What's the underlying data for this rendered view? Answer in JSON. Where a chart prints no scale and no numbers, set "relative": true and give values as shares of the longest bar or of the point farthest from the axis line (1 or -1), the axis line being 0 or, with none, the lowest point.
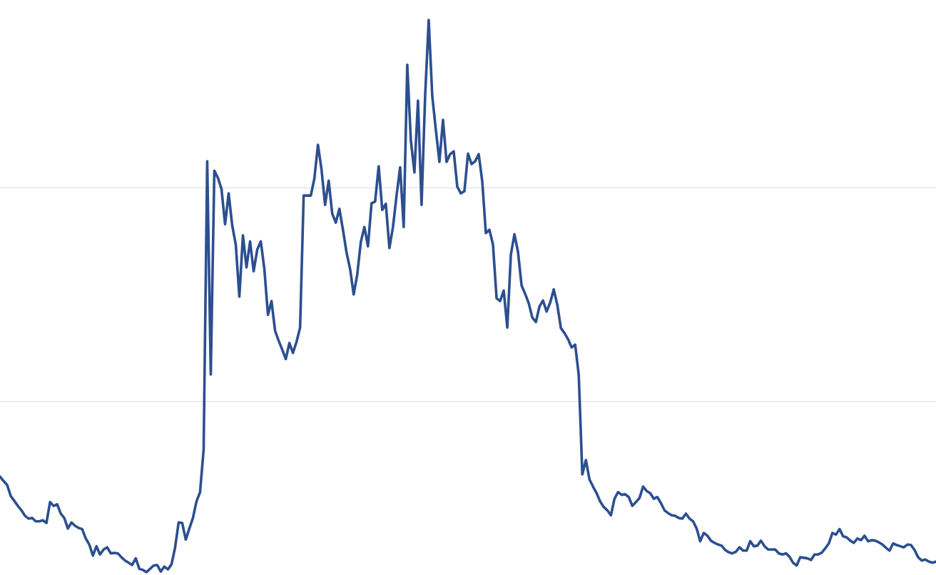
{
  "chart_data": {
    "type": "line",
    "relative": true,
    "color": "#2c4f8f",
    "ref_lines": [
      {
        "axis": "y",
        "value": 0.309,
        "color": "#e6e6e6"
      },
      {
        "axis": "y",
        "value": 0.696,
        "color": "#e6e6e6"
      }
    ],
    "categories": [
      null,
      null,
      null,
      null,
      null,
      null,
      null,
      null,
      null,
      null,
      null,
      null,
      null,
      null,
      null,
      null,
      null,
      null,
      null,
      null,
      null,
      null,
      null,
      null,
      null,
      null,
      null,
      null,
      null,
      null,
      null,
      null,
      null,
      null,
      null,
      null,
      null,
      null,
      null,
      null,
      null,
      null,
      null,
      null,
      null,
      null,
      null,
      null,
      null,
      null,
      null,
      null,
      null,
      null,
      null,
      null,
      null,
      null,
      null,
      null,
      null,
      null,
      null,
      null,
      null,
      null,
      null,
      null,
      null,
      null,
      null,
      null,
      null,
      null,
      null,
      null,
      null,
      null,
      null,
      null,
      null,
      null,
      null,
      null,
      null,
      null,
      null,
      null,
      null,
      null,
      null,
      null,
      null,
      null,
      null,
      null,
      null,
      null,
      null,
      null,
      null,
      null,
      null,
      null,
      null,
      null,
      null,
      null,
      null,
      null,
      null,
      null,
      null,
      null,
      null,
      null,
      null,
      null,
      null,
      null,
      null,
      null,
      null,
      null,
      null,
      null,
      null,
      null,
      null,
      null,
      null,
      null,
      null,
      null,
      null,
      null,
      null,
      null,
      null,
      null,
      null,
      null,
      null,
      null,
      null,
      null,
      null,
      null,
      null,
      null,
      null,
      null,
      null,
      null,
      null,
      null,
      null,
      null,
      null,
      null,
      null,
      null,
      null,
      null,
      null,
      null,
      null,
      null,
      null,
      null,
      null,
      null,
      null,
      null,
      null,
      null,
      null,
      null,
      null,
      null,
      null,
      null,
      null,
      null,
      null,
      null,
      null,
      null,
      null,
      null,
      null,
      null,
      null,
      null,
      null,
      null,
      null,
      null,
      null,
      null,
      null,
      null,
      null,
      null,
      null,
      null,
      null,
      null,
      null,
      null,
      null,
      null,
      null,
      null,
      null,
      null,
      null,
      null,
      null,
      null,
      null,
      null,
      null,
      null,
      null,
      null,
      null,
      null,
      null,
      null,
      null,
      null,
      null,
      null,
      null,
      null,
      null,
      null,
      null,
      null,
      null,
      null,
      null,
      null,
      null,
      null,
      null,
      null,
      null,
      null,
      null,
      null,
      null,
      null,
      null,
      null,
      null,
      null,
      null,
      null,
      null,
      null,
      null
    ],
    "values": [
      0.173,
      0.165,
      0.158,
      0.138,
      0.129,
      0.12,
      0.112,
      0.102,
      0.097,
      0.098,
      0.092,
      0.092,
      0.094,
      0.089,
      0.127,
      0.12,
      0.123,
      0.106,
      0.098,
      0.079,
      0.09,
      0.084,
      0.08,
      0.078,
      0.061,
      0.05,
      0.03,
      0.047,
      0.032,
      0.041,
      0.045,
      0.034,
      0.035,
      0.034,
      0.027,
      0.021,
      0.017,
      0.013,
      0.025,
      0.006,
      0.004,
      0,
      0.006,
      0.012,
      0.013,
      0.001,
      0.01,
      0.005,
      0.014,
      0.044,
      0.09,
      0.089,
      0.059,
      0.079,
      0.098,
      0.128,
      0.145,
      0.222,
      0.744,
      0.358,
      0.727,
      0.714,
      0.694,
      0.63,
      0.686,
      0.628,
      0.593,
      0.499,
      0.61,
      0.552,
      0.599,
      0.545,
      0.584,
      0.599,
      0.549,
      0.466,
      0.491,
      0.437,
      0.419,
      0.403,
      0.386,
      0.415,
      0.397,
      0.417,
      0.443,
      0.682,
      0.682,
      0.682,
      0.713,
      0.774,
      0.729,
      0.665,
      0.709,
      0.649,
      0.633,
      0.658,
      0.62,
      0.579,
      0.549,
      0.503,
      0.539,
      0.598,
      0.625,
      0.59,
      0.668,
      0.671,
      0.735,
      0.656,
      0.667,
      0.587,
      0.625,
      0.682,
      0.733,
      0.625,
      0.919,
      0.782,
      0.724,
      0.854,
      0.665,
      0.862,
      1,
      0.862,
      0.801,
      0.743,
      0.819,
      0.743,
      0.757,
      0.762,
      0.698,
      0.686,
      0.69,
      0.758,
      0.739,
      0.744,
      0.757,
      0.707,
      0.614,
      0.62,
      0.593,
      0.496,
      0.491,
      0.51,
      0.443,
      0.575,
      0.612,
      0.58,
      0.519,
      0.504,
      0.487,
      0.461,
      0.453,
      0.481,
      0.492,
      0.472,
      0.488,
      0.512,
      0.484,
      0.442,
      0.433,
      0.422,
      0.407,
      0.412,
      0.357,
      0.177,
      0.203,
      0.168,
      0.155,
      0.143,
      0.128,
      0.118,
      0.112,
      0.103,
      0.133,
      0.145,
      0.14,
      0.141,
      0.136,
      0.12,
      0.127,
      0.134,
      0.155,
      0.147,
      0.143,
      0.133,
      0.136,
      0.125,
      0.112,
      0.107,
      0.103,
      0.102,
      0.098,
      0.097,
      0.106,
      0.097,
      0.092,
      0.079,
      0.056,
      0.071,
      0.066,
      0.057,
      0.053,
      0.05,
      0.048,
      0.04,
      0.036,
      0.034,
      0.037,
      0.045,
      0.039,
      0.039,
      0.056,
      0.047,
      0.048,
      0.057,
      0.047,
      0.041,
      0.041,
      0.041,
      0.034,
      0.032,
      0.034,
      0.028,
      0.017,
      0.012,
      0.027,
      0.026,
      0.025,
      0.022,
      0.032,
      0.032,
      0.035,
      0.043,
      0.052,
      0.071,
      0.068,
      0.078,
      0.065,
      0.063,
      0.057,
      0.053,
      0.061,
      0.058,
      0.066,
      0.056,
      0.058,
      0.057,
      0.054,
      0.05,
      0.044,
      0.039,
      0.052,
      0.049,
      0.047,
      0.045,
      0.05,
      0.049,
      0.04,
      0.027,
      0.021,
      0.023,
      0.019,
      0.017,
      0.019
    ]
  }
}
